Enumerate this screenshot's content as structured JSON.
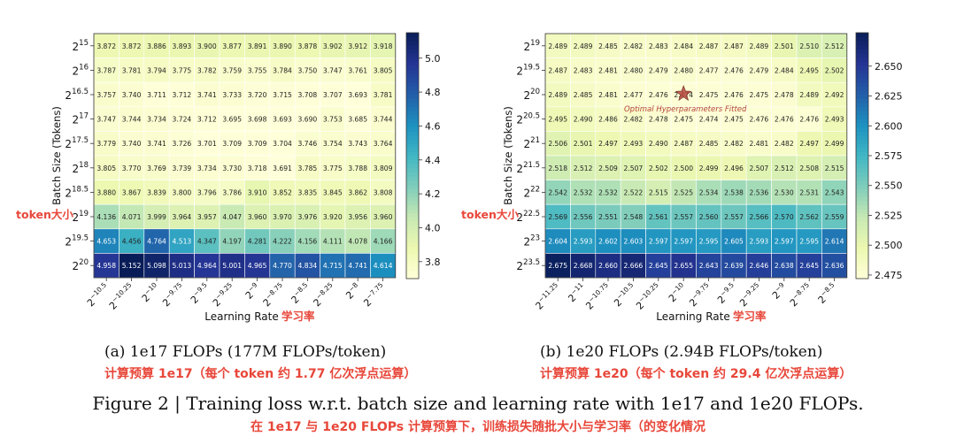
{
  "chart_data": [
    {
      "type": "heatmap",
      "id": "a",
      "ylabel": "Batch Size (Tokens)",
      "xlabel": "Learning Rate",
      "xlabel_note": "学习率",
      "ylabel_note": "token大小",
      "x_exponents": [
        "-10.5",
        "-10.25",
        "-10",
        "-9.75",
        "-9.5",
        "-9.25",
        "-9",
        "-8.75",
        "-8.5",
        "-8.25",
        "-8",
        "-7.75"
      ],
      "y_exponents": [
        "15",
        "16",
        "16.5",
        "17",
        "17.5",
        "18",
        "18.5",
        "19",
        "19.5",
        "20"
      ],
      "values": [
        [
          3.872,
          3.872,
          3.886,
          3.893,
          3.9,
          3.877,
          3.891,
          3.89,
          3.878,
          3.902,
          3.912,
          3.918
        ],
        [
          3.787,
          3.781,
          3.794,
          3.775,
          3.782,
          3.759,
          3.755,
          3.784,
          3.75,
          3.747,
          3.761,
          3.805
        ],
        [
          3.757,
          3.74,
          3.711,
          3.712,
          3.741,
          3.733,
          3.72,
          3.715,
          3.708,
          3.707,
          3.693,
          3.781
        ],
        [
          3.747,
          3.744,
          3.734,
          3.724,
          3.712,
          3.695,
          3.698,
          3.693,
          3.69,
          3.753,
          3.685,
          3.744
        ],
        [
          3.779,
          3.74,
          3.741,
          3.726,
          3.701,
          3.709,
          3.709,
          3.704,
          3.746,
          3.754,
          3.743,
          3.764
        ],
        [
          3.805,
          3.77,
          3.769,
          3.739,
          3.734,
          3.73,
          3.718,
          3.691,
          3.785,
          3.775,
          3.788,
          3.809
        ],
        [
          3.88,
          3.867,
          3.839,
          3.8,
          3.796,
          3.786,
          3.91,
          3.852,
          3.835,
          3.845,
          3.862,
          3.808
        ],
        [
          4.136,
          4.071,
          3.999,
          3.964,
          3.957,
          4.047,
          3.96,
          3.97,
          3.976,
          3.92,
          3.956,
          3.96
        ],
        [
          4.653,
          4.456,
          4.764,
          4.513,
          4.347,
          4.197,
          4.281,
          4.222,
          4.156,
          4.111,
          4.078,
          4.166
        ],
        [
          4.958,
          5.152,
          5.098,
          5.013,
          4.964,
          5.001,
          4.965,
          4.77,
          4.834,
          4.715,
          4.741,
          4.614
        ]
      ],
      "colorbar": {
        "vmin": 3.7,
        "vmax": 5.15,
        "ticks": [
          "3.8",
          "4.0",
          "4.2",
          "4.4",
          "4.6",
          "4.8",
          "5.0"
        ]
      },
      "caption": "(a) 1e17 FLOPs (177M FLOPs/token)",
      "caption_zh": "计算预算 1e17（每个 token 约 1.77 亿次浮点运算）"
    },
    {
      "type": "heatmap",
      "id": "b",
      "ylabel": "Batch Size (Tokens)",
      "xlabel": "Learning Rate",
      "xlabel_note": "学习率",
      "ylabel_note": "token大小",
      "x_exponents": [
        "-11.25",
        "-11",
        "-10.75",
        "-10.5",
        "-10.25",
        "-10",
        "-9.75",
        "-9.5",
        "-9.25",
        "-9",
        "-8.75",
        "-8.5"
      ],
      "y_exponents": [
        "19",
        "19.5",
        "20",
        "20.5",
        "21",
        "21.5",
        "22",
        "22.5",
        "23",
        "23.5"
      ],
      "values": [
        [
          2.489,
          2.489,
          2.485,
          2.482,
          2.483,
          2.484,
          2.487,
          2.487,
          2.489,
          2.501,
          2.51,
          2.512
        ],
        [
          2.487,
          2.483,
          2.481,
          2.48,
          2.479,
          2.48,
          2.477,
          2.476,
          2.479,
          2.484,
          2.495,
          2.502
        ],
        [
          2.489,
          2.485,
          2.481,
          2.477,
          2.476,
          2.474,
          2.475,
          2.476,
          2.475,
          2.478,
          2.489,
          2.492
        ],
        [
          2.495,
          2.49,
          2.486,
          2.482,
          2.478,
          2.475,
          2.474,
          2.475,
          2.476,
          2.476,
          2.476,
          2.493
        ],
        [
          2.506,
          2.501,
          2.497,
          2.493,
          2.49,
          2.487,
          2.485,
          2.482,
          2.481,
          2.482,
          2.497,
          2.499
        ],
        [
          2.518,
          2.512,
          2.509,
          2.507,
          2.502,
          2.5,
          2.499,
          2.496,
          2.507,
          2.512,
          2.508,
          2.515
        ],
        [
          2.542,
          2.532,
          2.532,
          2.522,
          2.515,
          2.525,
          2.534,
          2.538,
          2.536,
          2.53,
          2.531,
          2.543
        ],
        [
          2.569,
          2.556,
          2.551,
          2.548,
          2.561,
          2.557,
          2.56,
          2.557,
          2.566,
          2.57,
          2.562,
          2.559
        ],
        [
          2.604,
          2.593,
          2.602,
          2.603,
          2.597,
          2.597,
          2.595,
          2.605,
          2.593,
          2.597,
          2.595,
          2.614
        ],
        [
          2.675,
          2.668,
          2.66,
          2.666,
          2.645,
          2.655,
          2.643,
          2.639,
          2.646,
          2.638,
          2.645,
          2.636
        ]
      ],
      "colorbar": {
        "vmin": 2.472,
        "vmax": 2.678,
        "ticks": [
          "2.475",
          "2.500",
          "2.525",
          "2.550",
          "2.575",
          "2.600",
          "2.625",
          "2.650"
        ]
      },
      "annotation": {
        "text": "Optimal Hyperparameters Fitted",
        "row": 2,
        "col": 5,
        "color": "#b5453a"
      },
      "caption": "(b) 1e20 FLOPs (2.94B FLOPs/token)",
      "caption_zh": "计算预算 1e20（每个 token 约 29.4 亿次浮点运算）"
    }
  ],
  "figure": {
    "caption": "Figure 2 | Training loss w.r.t. batch size and learning rate with 1e17 and 1e20 FLOPs.",
    "caption_zh": "在 1e17 与 1e20 FLOPs 计算预算下，训练损失随批大小与学习率（的变化情况"
  },
  "colors": {
    "note": "#e8473a",
    "cmap": [
      "#ffffd9",
      "#edf8b1",
      "#c7e9b4",
      "#7fcdbb",
      "#41b6c4",
      "#1d91c0",
      "#225ea8",
      "#253494",
      "#081d58"
    ]
  }
}
